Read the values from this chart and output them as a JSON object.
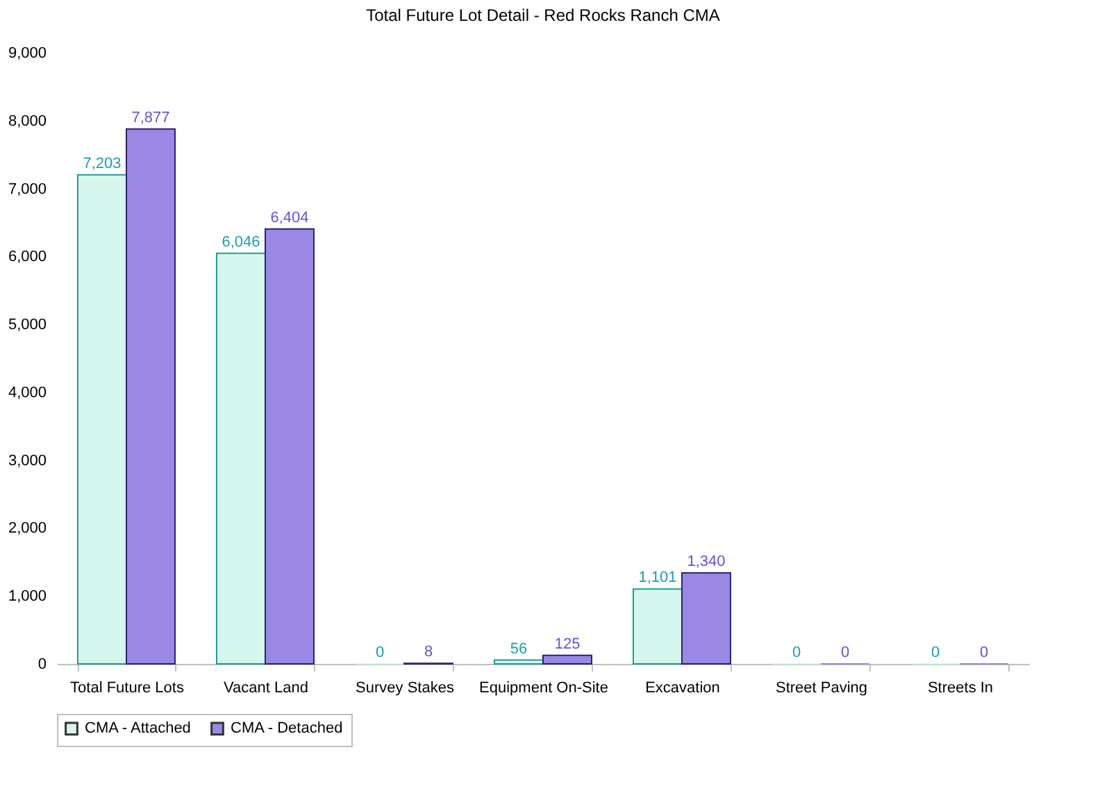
{
  "chart_data": {
    "type": "bar",
    "title": "Total Future Lot Detail - Red Rocks Ranch CMA",
    "categories": [
      "Total Future Lots",
      "Vacant Land",
      "Survey Stakes",
      "Equipment On-Site",
      "Excavation",
      "Street Paving",
      "Streets In"
    ],
    "series": [
      {
        "name": "CMA - Attached",
        "color": "#d5f6ec",
        "values": [
          7203,
          6046,
          0,
          56,
          1101,
          0,
          0
        ],
        "value_labels": [
          "7,203",
          "6,046",
          "0",
          "56",
          "1,101",
          "0",
          "0"
        ]
      },
      {
        "name": "CMA - Detached",
        "color": "#9b88e6",
        "values": [
          7877,
          6404,
          8,
          125,
          1340,
          0,
          0
        ],
        "value_labels": [
          "7,877",
          "6,404",
          "8",
          "125",
          "1,340",
          "0",
          "0"
        ]
      }
    ],
    "ylim": [
      0,
      9000
    ],
    "yticks": [
      0,
      {
        "value": 1000,
        "label": "1,000"
      },
      {
        "value": 2000,
        "label": "2,000"
      },
      {
        "value": 3000,
        "label": "3,000"
      },
      {
        "value": 4000,
        "label": "4,000"
      },
      {
        "value": 5000,
        "label": "5,000"
      },
      {
        "value": 6000,
        "label": "6,000"
      },
      {
        "value": 7000,
        "label": "7,000"
      },
      {
        "value": 8000,
        "label": "8,000"
      },
      {
        "value": 9000,
        "label": "9,000"
      }
    ],
    "grid": false,
    "legend": "bottom"
  }
}
